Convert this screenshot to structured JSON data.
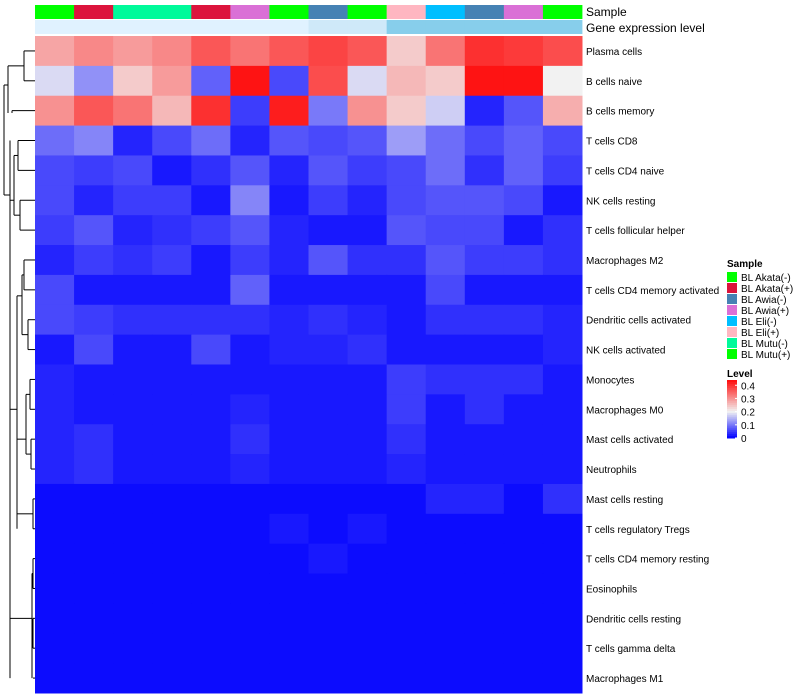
{
  "chart_data": {
    "type": "heatmap",
    "annotation_labels": {
      "sample": "Sample",
      "gene_expression_level": "Gene expression level"
    },
    "sample_annotation_colors": [
      "#00ff00",
      "#dc143c",
      "#00fa9a",
      "#00fa9a",
      "#dc143c",
      "#da70d6",
      "#00ff00",
      "#4682b4",
      "#00ff00",
      "#ffb6c1",
      "#00bfff",
      "#4682b4",
      "#da70d6",
      "#00ff00"
    ],
    "gene_expression_colors": [
      "#e0f2ff",
      "#e0f2ff",
      "#e0f2ff",
      "#e0f2ff",
      "#e0f2ff",
      "#e0f2ff",
      "#e0f2ff",
      "#cfe9f9",
      "#cfe9f9",
      "#87ceeb",
      "#87ceeb",
      "#87ceeb",
      "#87ceeb",
      "#87ceeb"
    ],
    "row_labels": [
      "Plasma cells",
      "B cells naive",
      "B cells memory",
      "T cells CD8",
      "T cells CD4 naive",
      "NK cells resting",
      "T cells follicular helper",
      "Macrophages M2",
      "T cells CD4 memory activated",
      "Dendritic cells activated",
      "NK cells activated",
      "Monocytes",
      "Macrophages M0",
      "Mast cells activated",
      "Neutrophils",
      "Mast cells resting",
      "T cells regulatory  Tregs",
      "T cells CD4 memory resting",
      "Eosinophils",
      "Dendritic cells resting",
      "T cells gamma delta",
      "Macrophages M1"
    ],
    "values": [
      [
        0.28,
        0.31,
        0.29,
        0.31,
        0.36,
        0.33,
        0.36,
        0.38,
        0.36,
        0.24,
        0.33,
        0.4,
        0.39,
        0.37
      ],
      [
        0.18,
        0.12,
        0.24,
        0.29,
        0.08,
        0.43,
        0.06,
        0.37,
        0.18,
        0.26,
        0.24,
        0.43,
        0.43,
        0.2
      ],
      [
        0.3,
        0.36,
        0.33,
        0.26,
        0.4,
        0.05,
        0.42,
        0.1,
        0.3,
        0.24,
        0.17,
        0.03,
        0.07,
        0.27
      ],
      [
        0.09,
        0.11,
        0.03,
        0.06,
        0.09,
        0.03,
        0.07,
        0.06,
        0.07,
        0.13,
        0.09,
        0.06,
        0.08,
        0.06
      ],
      [
        0.06,
        0.05,
        0.06,
        0.02,
        0.04,
        0.07,
        0.03,
        0.07,
        0.05,
        0.06,
        0.09,
        0.04,
        0.08,
        0.05
      ],
      [
        0.06,
        0.03,
        0.05,
        0.05,
        0.02,
        0.11,
        0.02,
        0.05,
        0.03,
        0.06,
        0.07,
        0.07,
        0.06,
        0.02
      ],
      [
        0.05,
        0.07,
        0.03,
        0.04,
        0.05,
        0.07,
        0.03,
        0.02,
        0.02,
        0.07,
        0.06,
        0.06,
        0.02,
        0.04
      ],
      [
        0.03,
        0.05,
        0.04,
        0.05,
        0.02,
        0.05,
        0.03,
        0.07,
        0.04,
        0.04,
        0.07,
        0.05,
        0.05,
        0.04
      ],
      [
        0.06,
        0.02,
        0.02,
        0.02,
        0.02,
        0.08,
        0.02,
        0.02,
        0.02,
        0.02,
        0.06,
        0.02,
        0.02,
        0.02
      ],
      [
        0.06,
        0.05,
        0.04,
        0.04,
        0.04,
        0.04,
        0.03,
        0.04,
        0.03,
        0.02,
        0.04,
        0.04,
        0.04,
        0.03
      ],
      [
        0.02,
        0.06,
        0.02,
        0.02,
        0.06,
        0.02,
        0.03,
        0.03,
        0.04,
        0.02,
        0.02,
        0.02,
        0.02,
        0.03
      ],
      [
        0.03,
        0.02,
        0.02,
        0.02,
        0.02,
        0.02,
        0.02,
        0.02,
        0.02,
        0.05,
        0.04,
        0.04,
        0.04,
        0.02
      ],
      [
        0.03,
        0.02,
        0.02,
        0.02,
        0.02,
        0.03,
        0.02,
        0.02,
        0.02,
        0.05,
        0.02,
        0.04,
        0.02,
        0.02
      ],
      [
        0.03,
        0.04,
        0.02,
        0.02,
        0.02,
        0.04,
        0.02,
        0.02,
        0.02,
        0.04,
        0.02,
        0.02,
        0.02,
        0.02
      ],
      [
        0.03,
        0.04,
        0.02,
        0.02,
        0.02,
        0.03,
        0.02,
        0.02,
        0.02,
        0.03,
        0.02,
        0.02,
        0.02,
        0.02
      ],
      [
        0.01,
        0.01,
        0.01,
        0.01,
        0.01,
        0.01,
        0.01,
        0.01,
        0.01,
        0.01,
        0.03,
        0.03,
        0.01,
        0.04
      ],
      [
        0.01,
        0.01,
        0.01,
        0.01,
        0.01,
        0.01,
        0.02,
        0.01,
        0.02,
        0.01,
        0.01,
        0.01,
        0.01,
        0.01
      ],
      [
        0.01,
        0.01,
        0.01,
        0.01,
        0.01,
        0.01,
        0.01,
        0.02,
        0.01,
        0.01,
        0.01,
        0.01,
        0.01,
        0.01
      ],
      [
        0.01,
        0.01,
        0.01,
        0.01,
        0.01,
        0.01,
        0.01,
        0.01,
        0.01,
        0.01,
        0.01,
        0.01,
        0.01,
        0.01
      ],
      [
        0.01,
        0.01,
        0.01,
        0.01,
        0.01,
        0.01,
        0.01,
        0.01,
        0.01,
        0.01,
        0.01,
        0.01,
        0.01,
        0.01
      ],
      [
        0.01,
        0.01,
        0.01,
        0.01,
        0.01,
        0.01,
        0.01,
        0.01,
        0.01,
        0.01,
        0.01,
        0.01,
        0.01,
        0.01
      ],
      [
        0.01,
        0.01,
        0.01,
        0.01,
        0.01,
        0.01,
        0.01,
        0.01,
        0.01,
        0.01,
        0.01,
        0.01,
        0.01,
        0.01
      ]
    ],
    "color_scale": {
      "min": 0,
      "mid": 0.2,
      "max": 0.45,
      "low_color": "#0000ff",
      "mid_color": "#f2f2f2",
      "high_color": "#ff0000"
    },
    "legend_sample": {
      "title": "Sample",
      "items": [
        {
          "label": "BL Akata(-)",
          "color": "#00ff00"
        },
        {
          "label": "BL Akata(+)",
          "color": "#dc143c"
        },
        {
          "label": "BL Awia(-)",
          "color": "#4682b4"
        },
        {
          "label": "BL Awia(+)",
          "color": "#da70d6"
        },
        {
          "label": "BL Eli(-)",
          "color": "#00bfff"
        },
        {
          "label": "BL Eli(+)",
          "color": "#ffb6c1"
        },
        {
          "label": "BL Mutu(-)",
          "color": "#00fa9a"
        },
        {
          "label": "BL Mutu(+)",
          "color": "#00ff00"
        }
      ]
    },
    "legend_level": {
      "title": "Level",
      "ticks": [
        {
          "value": 0.4,
          "label": "0.4"
        },
        {
          "value": 0.3,
          "label": "0.3"
        },
        {
          "value": 0.2,
          "label": "0.2"
        },
        {
          "value": 0.1,
          "label": "0.1"
        },
        {
          "value": 0,
          "label": "0"
        }
      ],
      "range": [
        0,
        0.44
      ]
    }
  }
}
